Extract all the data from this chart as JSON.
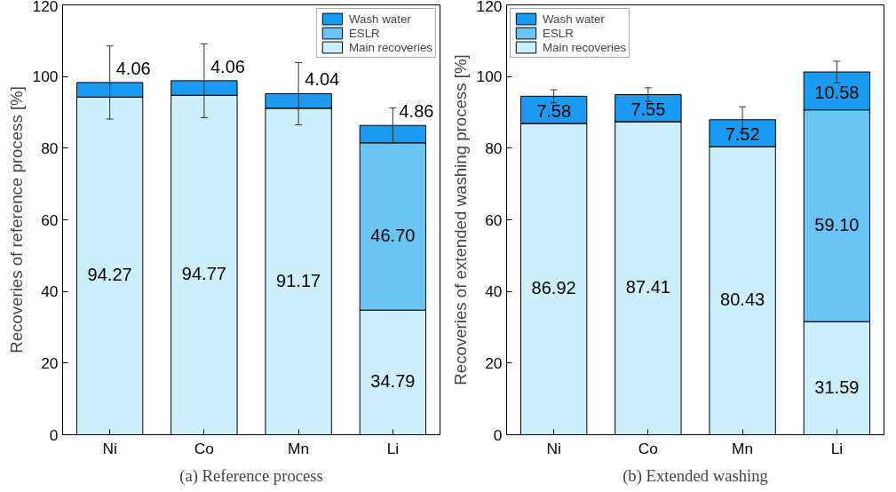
{
  "chart_data": [
    {
      "type": "bar",
      "stacked": true,
      "categories": [
        "Ni",
        "Co",
        "Mn",
        "Li"
      ],
      "ylabel": "Recoveries of reference process [%]",
      "ylim": [
        0,
        120
      ],
      "yticks": [
        0,
        20,
        40,
        60,
        80,
        100,
        120
      ],
      "grid": false,
      "legend": "top right",
      "annotations": [
        "(a) Reference process"
      ],
      "series": [
        {
          "name": "Main recoveries",
          "color": "#cdeefc",
          "values": [
            94.27,
            94.77,
            91.17,
            34.79
          ],
          "value_labels": [
            "94.27",
            "94.77",
            "91.17",
            "34.79"
          ]
        },
        {
          "name": "ESLR",
          "color": "#6cc4f5",
          "values": [
            null,
            null,
            null,
            46.7
          ],
          "value_labels": [
            null,
            null,
            null,
            "46.70"
          ]
        },
        {
          "name": "Wash water",
          "color": "#1a9af0",
          "values": [
            4.06,
            4.06,
            4.04,
            4.86
          ],
          "value_labels": [
            "4.06",
            "4.06",
            "4.04",
            "4.86"
          ],
          "errors": [
            10.2,
            10.3,
            8.7,
            4.9
          ]
        }
      ]
    },
    {
      "type": "bar",
      "stacked": true,
      "categories": [
        "Ni",
        "Co",
        "Mn",
        "Li"
      ],
      "ylabel": "Recoveries of extended washing process [%]",
      "ylim": [
        0,
        120
      ],
      "yticks": [
        0,
        20,
        40,
        60,
        80,
        100,
        120
      ],
      "grid": false,
      "legend": "top left",
      "annotations": [
        "(b) Extended washing"
      ],
      "series": [
        {
          "name": "Main recoveries",
          "color": "#cdeefc",
          "values": [
            86.92,
            87.41,
            80.43,
            31.59
          ],
          "value_labels": [
            "86.92",
            "87.41",
            "80.43",
            "31.59"
          ]
        },
        {
          "name": "ESLR",
          "color": "#6cc4f5",
          "values": [
            null,
            null,
            null,
            59.1
          ],
          "value_labels": [
            null,
            null,
            null,
            "59.10"
          ]
        },
        {
          "name": "Wash water",
          "color": "#1a9af0",
          "values": [
            7.58,
            7.55,
            7.52,
            10.58
          ],
          "value_labels": [
            "7.58",
            "7.55",
            "7.52",
            "10.58"
          ],
          "errors": [
            1.8,
            1.9,
            3.6,
            3.0
          ]
        }
      ]
    }
  ]
}
